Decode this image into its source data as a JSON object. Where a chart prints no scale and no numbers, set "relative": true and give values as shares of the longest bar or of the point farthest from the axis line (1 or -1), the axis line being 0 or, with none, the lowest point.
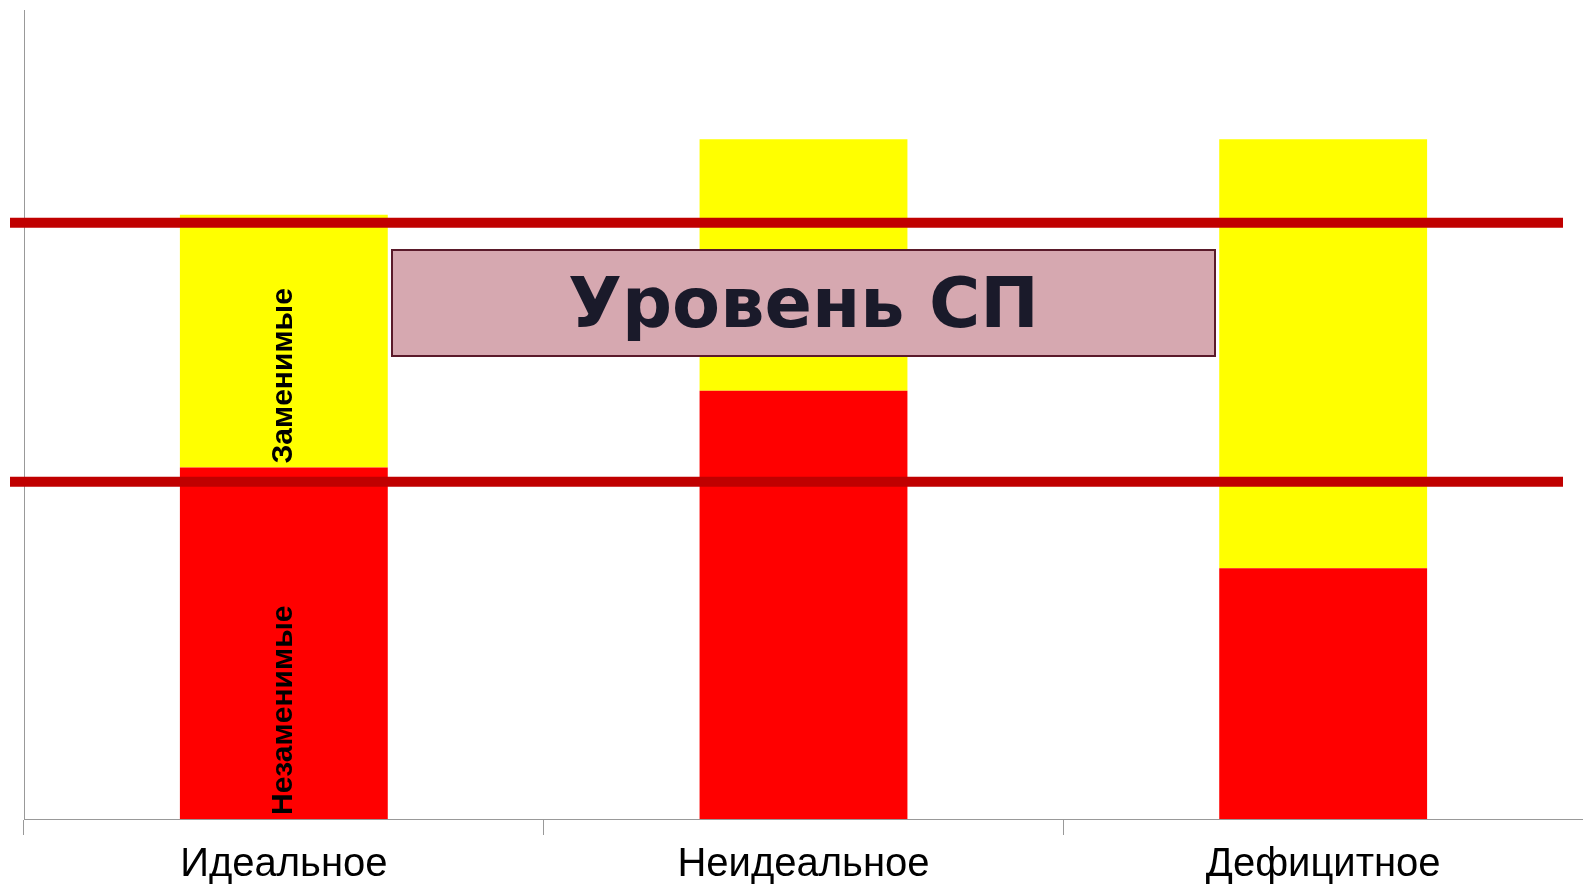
{
  "chart_data": {
    "type": "bar",
    "stacked": true,
    "relative": true,
    "legend": false,
    "grid": false,
    "categories": [
      "Идеальное",
      "Неидеальное",
      "Дефицитное"
    ],
    "series": [
      {
        "name": "Незаменимые",
        "color": "#ff0000",
        "values": [
          0.517,
          0.63,
          0.369
        ]
      },
      {
        "name": "Заменимые",
        "color": "#ffff00",
        "values": [
          0.372,
          0.37,
          0.631
        ]
      }
    ],
    "ref_lines": [
      {
        "axis": "y",
        "value": 0.877,
        "color": "#c00000"
      },
      {
        "axis": "y",
        "value": 0.496,
        "color": "#c00000"
      }
    ],
    "annotations": [
      "Уровень СП"
    ]
  }
}
